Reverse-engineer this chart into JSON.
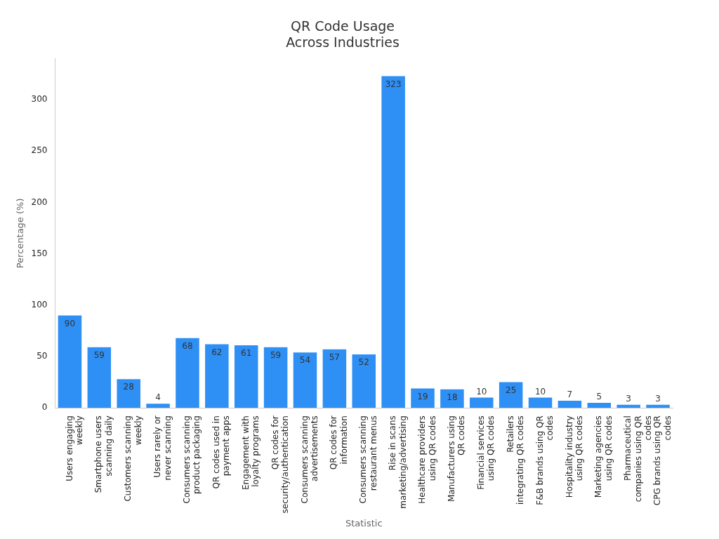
{
  "chart_data": {
    "type": "bar",
    "title": "QR Code Usage\nAcross Industries",
    "xlabel": "Statistic",
    "ylabel": "Percentage (%)",
    "categories": [
      "Users engaging weekly",
      "Smartphone users scanning daily",
      "Customers scanning weekly",
      "Users rarely or never scanning",
      "Consumers scanning product packaging",
      "QR codes used in payment apps",
      "Engagement with loyalty programs",
      "QR codes for security/authentication",
      "Consumers scanning advertisements",
      "QR codes for information",
      "Consumers scanning restaurant menus",
      "Rise in scans marketing/advertising",
      "Healthcare providers using QR codes",
      "Manufacturers using QR codes",
      "Financial services using QR codes",
      "Retailers integrating QR codes",
      "F&B brands using QR codes",
      "Hospitality industry using QR codes",
      "Marketing agencies using QR codes",
      "Pharmaceutical companies using QR codes",
      "CPG brands using QR codes"
    ],
    "values": [
      90,
      59,
      28,
      4,
      68,
      62,
      61,
      59,
      54,
      57,
      52,
      323,
      19,
      18,
      10,
      25,
      10,
      7,
      5,
      3,
      3
    ],
    "color": "#2e8ff5",
    "ylim": [
      0,
      340
    ],
    "yticks": [
      0,
      50,
      100,
      150,
      200,
      250,
      300
    ],
    "grid": false,
    "legend": false,
    "data_labels": true
  }
}
